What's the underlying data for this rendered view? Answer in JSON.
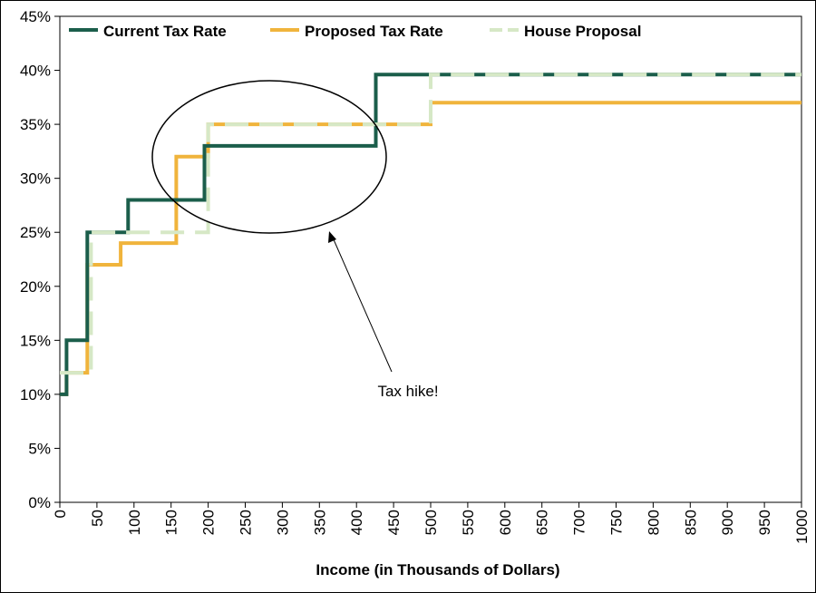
{
  "chart_data": {
    "type": "line",
    "title": "",
    "xlabel": "Income (in Thousands of Dollars)",
    "ylabel": "",
    "xlim": [
      0,
      1000
    ],
    "ylim": [
      0,
      45
    ],
    "x_ticks": [
      "0",
      "50",
      "100",
      "150",
      "200",
      "250",
      "300",
      "350",
      "400",
      "450",
      "500",
      "550",
      "600",
      "650",
      "700",
      "750",
      "800",
      "850",
      "900",
      "950",
      "1000"
    ],
    "y_ticks": [
      "0%",
      "5%",
      "10%",
      "15%",
      "20%",
      "25%",
      "30%",
      "35%",
      "40%",
      "45%"
    ],
    "grid": false,
    "legend_position": "top",
    "series": [
      {
        "name": "Current Tax Rate",
        "color": "#1b5e4b",
        "style": "solid",
        "step": true,
        "points": [
          [
            0,
            10
          ],
          [
            9,
            10
          ],
          [
            9,
            15
          ],
          [
            37,
            15
          ],
          [
            37,
            25
          ],
          [
            92,
            25
          ],
          [
            92,
            28
          ],
          [
            195,
            28
          ],
          [
            195,
            33
          ],
          [
            426,
            33
          ],
          [
            426,
            39.6
          ],
          [
            1000,
            39.6
          ]
        ]
      },
      {
        "name": "Proposed Tax Rate",
        "color": "#f0b43c",
        "style": "solid",
        "step": true,
        "points": [
          [
            0,
            10
          ],
          [
            9,
            10
          ],
          [
            9,
            12
          ],
          [
            37,
            12
          ],
          [
            37,
            22
          ],
          [
            82,
            22
          ],
          [
            82,
            24
          ],
          [
            157,
            24
          ],
          [
            157,
            32
          ],
          [
            200,
            32
          ],
          [
            200,
            35
          ],
          [
            500,
            35
          ],
          [
            500,
            37
          ],
          [
            1000,
            37
          ]
        ]
      },
      {
        "name": "House Proposal",
        "color": "#d6e8c6",
        "style": "dashed",
        "step": true,
        "points": [
          [
            0,
            12
          ],
          [
            42,
            12
          ],
          [
            42,
            25
          ],
          [
            200,
            25
          ],
          [
            200,
            35
          ],
          [
            500,
            35
          ],
          [
            500,
            39.6
          ],
          [
            1000,
            39.6
          ]
        ]
      }
    ],
    "annotations": [
      {
        "text": "Tax hike!",
        "shape": "ellipse-with-arrow"
      }
    ]
  }
}
